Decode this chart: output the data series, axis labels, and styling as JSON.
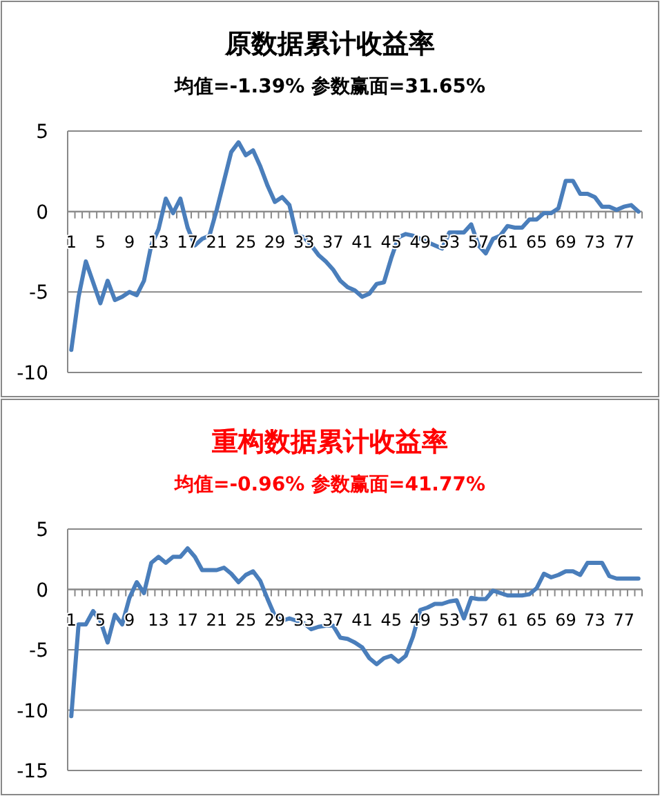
{
  "chart_data": [
    {
      "type": "line",
      "title": "原数据累计收益率",
      "subtitle": "均值=-1.39% 参数赢面=31.65%",
      "categories": [
        "1",
        null,
        null,
        null,
        "5",
        null,
        null,
        null,
        "9",
        null,
        null,
        null,
        "13",
        null,
        null,
        null,
        "17",
        null,
        null,
        null,
        "21",
        null,
        null,
        null,
        "25",
        null,
        null,
        null,
        "29",
        null,
        null,
        null,
        "33",
        null,
        null,
        null,
        "37",
        null,
        null,
        null,
        "41",
        null,
        null,
        null,
        "45",
        null,
        null,
        null,
        "49",
        null,
        null,
        null,
        "53",
        null,
        null,
        null,
        "57",
        null,
        null,
        null,
        "61",
        null,
        null,
        null,
        "65",
        null,
        null,
        null,
        "69",
        null,
        null,
        null,
        "73",
        null,
        null,
        null,
        "77",
        null,
        null
      ],
      "values": [
        -8.6,
        -5.3,
        -3.1,
        -4.4,
        -5.7,
        -4.3,
        -5.5,
        -5.3,
        -5.0,
        -5.2,
        -4.3,
        -2.1,
        -1.1,
        0.8,
        -0.1,
        0.8,
        -1.0,
        -2.1,
        -1.7,
        -1.5,
        0.1,
        1.9,
        3.7,
        4.3,
        3.5,
        3.8,
        2.8,
        1.6,
        0.6,
        0.9,
        0.4,
        -1.5,
        -1.6,
        -2.1,
        -2.7,
        -3.1,
        -3.6,
        -4.3,
        -4.7,
        -4.9,
        -5.3,
        -5.1,
        -4.5,
        -4.4,
        -2.9,
        -1.6,
        -1.4,
        -1.5,
        -1.7,
        -1.9,
        -2.1,
        -2.3,
        -1.3,
        -1.3,
        -1.3,
        -0.8,
        -2.1,
        -2.6,
        -1.7,
        -1.5,
        -0.9,
        -1.0,
        -1.0,
        -0.5,
        -0.5,
        -0.1,
        -0.1,
        0.2,
        1.9,
        1.9,
        1.1,
        1.1,
        0.9,
        0.3,
        0.3,
        0.1,
        0.3,
        0.4,
        0.0
      ],
      "color": "#4a7ebb",
      "ylim": [
        -10,
        5
      ],
      "yticks": [
        -10,
        -5,
        0,
        5
      ],
      "grid": "y"
    },
    {
      "type": "line",
      "title": "重构数据累计收益率",
      "subtitle": "均值=-0.96% 参数赢面=41.77%",
      "categories": [
        "1",
        null,
        null,
        null,
        "5",
        null,
        null,
        null,
        "9",
        null,
        null,
        null,
        "13",
        null,
        null,
        null,
        "17",
        null,
        null,
        null,
        "21",
        null,
        null,
        null,
        "25",
        null,
        null,
        null,
        "29",
        null,
        null,
        null,
        "33",
        null,
        null,
        null,
        "37",
        null,
        null,
        null,
        "41",
        null,
        null,
        null,
        "45",
        null,
        null,
        null,
        "49",
        null,
        null,
        null,
        "53",
        null,
        null,
        null,
        "57",
        null,
        null,
        null,
        "61",
        null,
        null,
        null,
        "65",
        null,
        null,
        null,
        "69",
        null,
        null,
        null,
        "73",
        null,
        null,
        null,
        "77",
        null,
        null
      ],
      "values": [
        -10.5,
        -2.9,
        -2.9,
        -1.8,
        -2.6,
        -4.4,
        -2.1,
        -2.9,
        -0.7,
        0.6,
        -0.3,
        2.2,
        2.7,
        2.2,
        2.7,
        2.7,
        3.4,
        2.7,
        1.6,
        1.6,
        1.6,
        1.8,
        1.3,
        0.6,
        1.2,
        1.5,
        0.7,
        -0.8,
        -2.2,
        -2.6,
        -2.4,
        -2.6,
        -2.8,
        -3.3,
        -3.1,
        -3.0,
        -3.0,
        -4.0,
        -4.1,
        -4.4,
        -4.8,
        -5.7,
        -6.2,
        -5.7,
        -5.5,
        -6.0,
        -5.5,
        -3.9,
        -1.7,
        -1.5,
        -1.2,
        -1.2,
        -1.0,
        -0.9,
        -2.4,
        -0.7,
        -0.8,
        -0.8,
        -0.1,
        -0.3,
        -0.5,
        -0.5,
        -0.5,
        -0.4,
        0.1,
        1.3,
        1.0,
        1.2,
        1.5,
        1.5,
        1.2,
        2.2,
        2.2,
        2.2,
        1.1,
        0.9,
        0.9,
        0.9,
        0.9
      ],
      "color": "#4a7ebb",
      "ylim": [
        -15,
        5
      ],
      "yticks": [
        -15,
        -10,
        -5,
        0,
        5
      ],
      "grid": "y"
    }
  ]
}
